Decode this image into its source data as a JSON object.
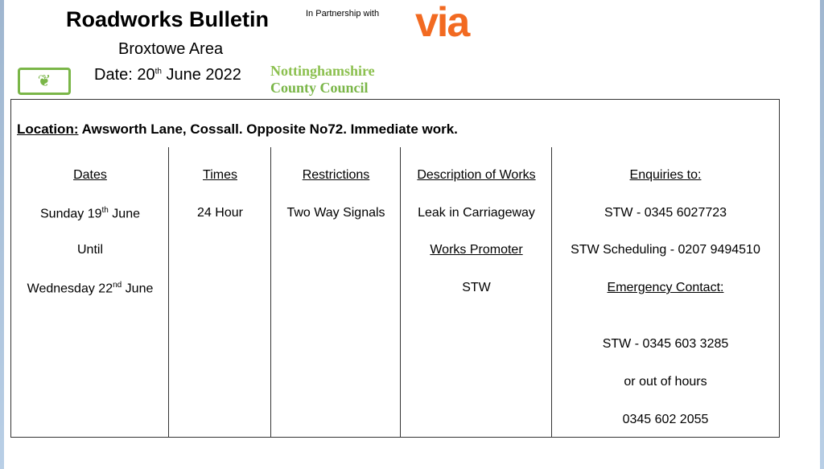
{
  "header": {
    "title": "Roadworks Bulletin",
    "partner_text": "In Partnership with",
    "partner_logo": "via",
    "area": "Broxtowe Area",
    "date_prefix": "Date: 20",
    "date_sup": "th",
    "date_suffix": " June 2022",
    "council_logo": {
      "line1": "Nottinghamshire",
      "line2": "County Council",
      "color": "#7ab648"
    }
  },
  "location": {
    "label": "Location:",
    "text": " Awsworth Lane, Cossall. Opposite No72. Immediate work."
  },
  "columns": {
    "dates": {
      "header": "Dates",
      "start_pre": "Sunday 19",
      "start_sup": "th",
      "start_post": " June",
      "until": "Until",
      "end_pre": "Wednesday 22",
      "end_sup": "nd",
      "end_post": " June"
    },
    "times": {
      "header": "Times",
      "value": "24 Hour"
    },
    "restrictions": {
      "header": "Restrictions",
      "value": "Two Way Signals"
    },
    "description": {
      "header": "Description of Works",
      "value": "Leak in Carriageway",
      "promoter_header": "Works Promoter",
      "promoter": "STW"
    },
    "enquiries": {
      "header": "Enquiries to:",
      "line1": "STW - 0345 6027723",
      "line2": "STW Scheduling - 0207 9494510",
      "emergency_header": "Emergency Contact:",
      "line3": "STW - 0345 603 3285",
      "line4": "or out of hours",
      "line5": "0345 602 2055"
    }
  }
}
